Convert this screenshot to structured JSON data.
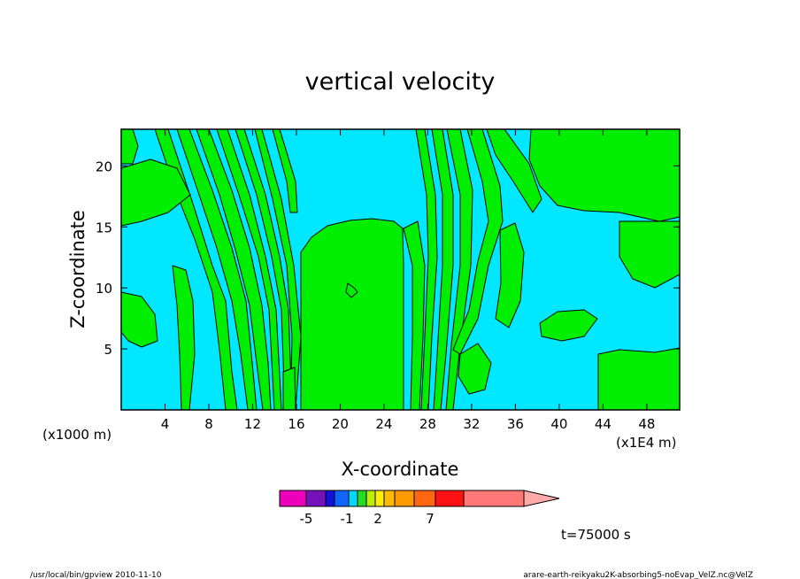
{
  "chart_data": {
    "type": "heatmap",
    "title": "vertical velocity",
    "xlabel": "X-coordinate",
    "ylabel": "Z-coordinate",
    "x_unit_left": "(x1000 m)",
    "x_unit_right": "(x1E4 m)",
    "xlim": [
      0,
      51
    ],
    "ylim": [
      0,
      23
    ],
    "x_ticks": [
      4,
      8,
      12,
      16,
      20,
      24,
      28,
      32,
      36,
      40,
      44,
      48
    ],
    "y_ticks": [
      5,
      10,
      15,
      20
    ],
    "x_tick_labels": [
      "4",
      "8",
      "12",
      "16",
      "20",
      "24",
      "28",
      "32",
      "36",
      "40",
      "44",
      "48"
    ],
    "y_tick_labels": [
      "5",
      "10",
      "15",
      "20"
    ],
    "fields": {
      "background_color": "#00e8ff",
      "positive_color": "#00ee00",
      "contour_color": "#000000"
    },
    "colorbar": {
      "colors": [
        "#ee00bb",
        "#7711bb",
        "#1111dd",
        "#1166ff",
        "#00d8ff",
        "#22dd22",
        "#bbee00",
        "#ffee00",
        "#ffbb00",
        "#ff9900",
        "#ff6611",
        "#ff1111",
        "#ff7777",
        "#ffaaaa"
      ],
      "tick_labels": [
        "-5",
        "-1",
        "2",
        "7"
      ]
    },
    "time_label": "t=75000 s",
    "footer_left": "/usr/local/bin/gpview  2010-11-10",
    "footer_right": "arare-earth-reikyaku2K-absorbing5-noEvap_VelZ.nc@VelZ"
  }
}
